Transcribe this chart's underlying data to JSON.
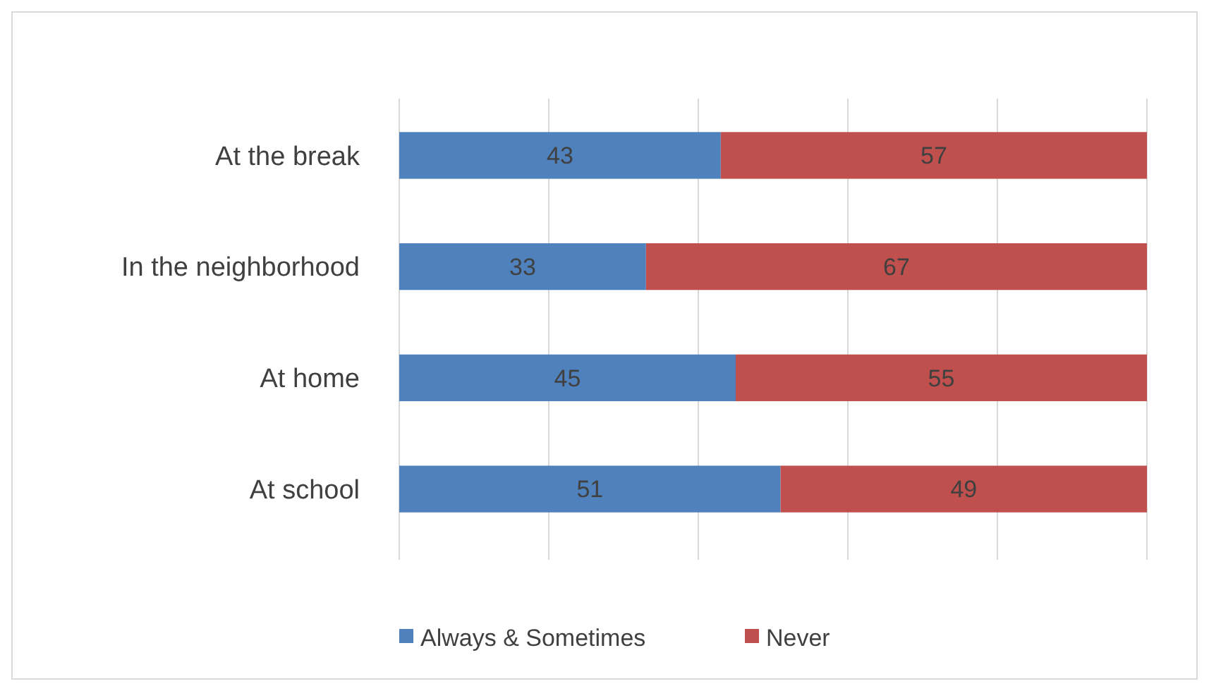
{
  "chart_data": {
    "type": "bar",
    "orientation": "horizontal",
    "stacked": true,
    "categories": [
      "At the break",
      "In the neighborhood",
      "At home",
      "At school"
    ],
    "series": [
      {
        "name": "Always & Sometimes",
        "color": "#4f81bd",
        "values": [
          43,
          33,
          45,
          51
        ]
      },
      {
        "name": "Never",
        "color": "#c0504d",
        "values": [
          57,
          67,
          55,
          49
        ]
      }
    ],
    "xlim": [
      0,
      100
    ],
    "xticks": [
      {
        "value": 0,
        "label": null
      },
      {
        "value": 20,
        "label": null
      },
      {
        "value": 40,
        "label": null
      },
      {
        "value": 60,
        "label": null
      },
      {
        "value": 80,
        "label": null
      },
      {
        "value": 100,
        "label": null
      }
    ],
    "tick_labels": "y",
    "grid": "x",
    "legend": "bottom",
    "data_labels": true
  }
}
